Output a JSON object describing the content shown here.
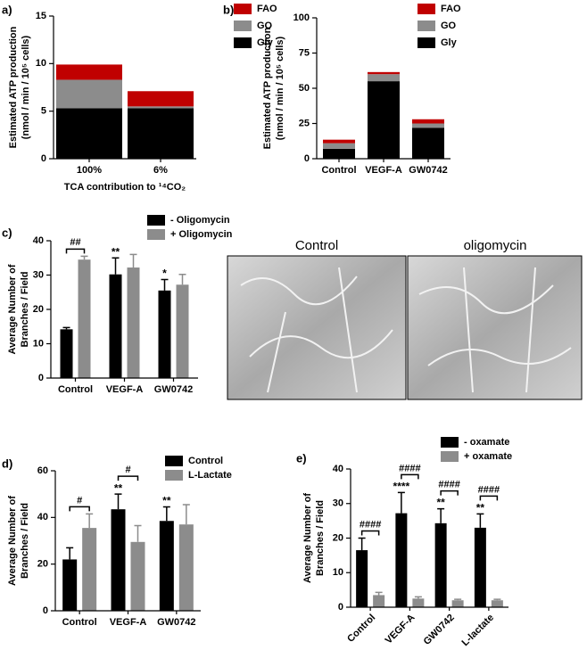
{
  "chart_data": [
    {
      "label": "a)",
      "type": "bar",
      "stacked": true,
      "ylabel": [
        "Estimated ATP production",
        "(nmol / min / 10⁵ cells)"
      ],
      "xlabel": "TCA contribution to ¹⁴CO₂",
      "categories": [
        "100%",
        "6%"
      ],
      "series": [
        {
          "name": "Gly",
          "color": "#000000",
          "values": [
            5.3,
            5.3
          ]
        },
        {
          "name": "GO",
          "color": "#8c8c8c",
          "values": [
            3.0,
            0.2
          ]
        },
        {
          "name": "FAO",
          "color": "#c00000",
          "values": [
            1.6,
            1.6
          ]
        }
      ],
      "ylim": [
        0,
        15
      ],
      "yticks": [
        0,
        5,
        10,
        15
      ]
    },
    {
      "label": "b)",
      "type": "bar",
      "stacked": true,
      "ylabel": [
        "Estimated ATP production",
        "(nmol / min / 10⁵ cells)"
      ],
      "categories": [
        "Control",
        "VEGF-A",
        "GW0742"
      ],
      "series": [
        {
          "name": "Gly",
          "color": "#000000",
          "values": [
            7,
            55,
            22
          ]
        },
        {
          "name": "GO",
          "color": "#8c8c8c",
          "values": [
            4,
            5,
            3
          ]
        },
        {
          "name": "FAO",
          "color": "#c00000",
          "values": [
            2.5,
            1.5,
            3
          ]
        }
      ],
      "ylim": [
        0,
        100
      ],
      "yticks": [
        0,
        25,
        50,
        75,
        100
      ]
    },
    {
      "label": "c)",
      "type": "bar",
      "stacked": false,
      "ylabel": [
        "Average Number of",
        "Branches / Field"
      ],
      "categories": [
        "Control",
        "VEGF-A",
        "GW0742"
      ],
      "series": [
        {
          "name": "- Oligomycin",
          "color": "#000000",
          "values": [
            14.2,
            30.2,
            25.5
          ],
          "errors": [
            0.5,
            4.8,
            3.2
          ]
        },
        {
          "name": "+ Oligomycin",
          "color": "#8c8c8c",
          "values": [
            34.5,
            32.2,
            27.2
          ],
          "errors": [
            1,
            3.8,
            3
          ]
        }
      ],
      "annotations": [
        {
          "text": "##",
          "category": 0,
          "bracket": true
        },
        {
          "text": "**",
          "category": 1,
          "series": 0
        },
        {
          "text": "*",
          "category": 2,
          "series": 0
        }
      ],
      "ylim": [
        0,
        40
      ],
      "yticks": [
        0,
        10,
        20,
        30,
        40
      ]
    },
    {
      "label": "d)",
      "type": "bar",
      "stacked": false,
      "ylabel": [
        "Average Number of",
        "Branches / Field"
      ],
      "categories": [
        "Control",
        "VEGF-A",
        "GW0742"
      ],
      "series": [
        {
          "name": "Control",
          "color": "#000000",
          "values": [
            22,
            43.5,
            38.5
          ],
          "errors": [
            5,
            6.5,
            6
          ]
        },
        {
          "name": "L-Lactate",
          "color": "#8c8c8c",
          "values": [
            35.5,
            29.5,
            37
          ],
          "errors": [
            6,
            7,
            8.5
          ]
        }
      ],
      "annotations": [
        {
          "text": "#",
          "category": 0,
          "bracket": true
        },
        {
          "text": "#",
          "category": 1,
          "bracket": true
        },
        {
          "text": "**",
          "category": 1,
          "series": 0
        },
        {
          "text": "**",
          "category": 2,
          "series": 0
        }
      ],
      "ylim": [
        0,
        60
      ],
      "yticks": [
        0,
        20,
        40,
        60
      ]
    },
    {
      "label": "e)",
      "type": "bar",
      "stacked": false,
      "rotate_x_labels": true,
      "ylabel": [
        "Average Number of",
        "Branches / Field"
      ],
      "categories": [
        "Control",
        "VEGF-A",
        "GW0742",
        "L-lactate"
      ],
      "series": [
        {
          "name": "- oxamate",
          "color": "#000000",
          "values": [
            16.5,
            27.2,
            24.3,
            23
          ],
          "errors": [
            3.5,
            6,
            4.2,
            4
          ]
        },
        {
          "name": "+ oxamate",
          "color": "#8c8c8c",
          "values": [
            3.5,
            2.5,
            2,
            2
          ],
          "errors": [
            0.8,
            0.5,
            0.3,
            0.3
          ]
        }
      ],
      "annotations": [
        {
          "text": "####",
          "category": 0,
          "bracket": true
        },
        {
          "text": "####",
          "category": 1,
          "bracket": true
        },
        {
          "text": "####",
          "category": 2,
          "bracket": true
        },
        {
          "text": "####",
          "category": 3,
          "bracket": true
        },
        {
          "text": "****",
          "category": 1,
          "series": 0
        },
        {
          "text": "**",
          "category": 2,
          "series": 0
        },
        {
          "text": "**",
          "category": 3,
          "series": 0
        }
      ],
      "ylim": [
        0,
        40
      ],
      "yticks": [
        0,
        10,
        20,
        30,
        40
      ]
    }
  ],
  "micrographs": [
    "Control",
    "oligomycin"
  ]
}
